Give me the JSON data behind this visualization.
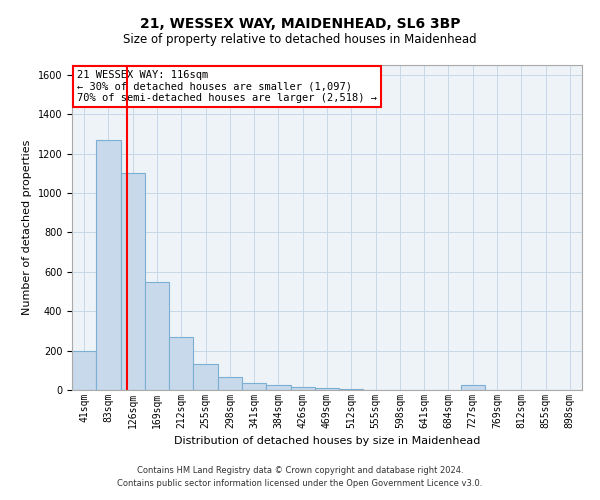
{
  "title": "21, WESSEX WAY, MAIDENHEAD, SL6 3BP",
  "subtitle": "Size of property relative to detached houses in Maidenhead",
  "xlabel": "Distribution of detached houses by size in Maidenhead",
  "ylabel": "Number of detached properties",
  "footer_line1": "Contains HM Land Registry data © Crown copyright and database right 2024.",
  "footer_line2": "Contains public sector information licensed under the Open Government Licence v3.0.",
  "categories": [
    "41sqm",
    "83sqm",
    "126sqm",
    "169sqm",
    "212sqm",
    "255sqm",
    "298sqm",
    "341sqm",
    "384sqm",
    "426sqm",
    "469sqm",
    "512sqm",
    "555sqm",
    "598sqm",
    "641sqm",
    "684sqm",
    "727sqm",
    "769sqm",
    "812sqm",
    "855sqm",
    "898sqm"
  ],
  "values": [
    198,
    1270,
    1100,
    550,
    268,
    130,
    65,
    35,
    25,
    15,
    8,
    5,
    2,
    1,
    1,
    0,
    25,
    0,
    0,
    0,
    0
  ],
  "bar_color": "#c9d9ec",
  "bar_edge_color": "#7bafd4",
  "grid_color": "#c8d8e8",
  "background_color": "#eef3f8",
  "red_line_x": 1.75,
  "annotation_text_line1": "21 WESSEX WAY: 116sqm",
  "annotation_text_line2": "← 30% of detached houses are smaller (1,097)",
  "annotation_text_line3": "70% of semi-detached houses are larger (2,518) →",
  "ylim": [
    0,
    1650
  ],
  "yticks": [
    0,
    200,
    400,
    600,
    800,
    1000,
    1200,
    1400,
    1600
  ],
  "title_fontsize": 10,
  "subtitle_fontsize": 8.5,
  "ylabel_fontsize": 8,
  "xlabel_fontsize": 8,
  "tick_fontsize": 7,
  "annotation_fontsize": 7.5,
  "footer_fontsize": 6
}
